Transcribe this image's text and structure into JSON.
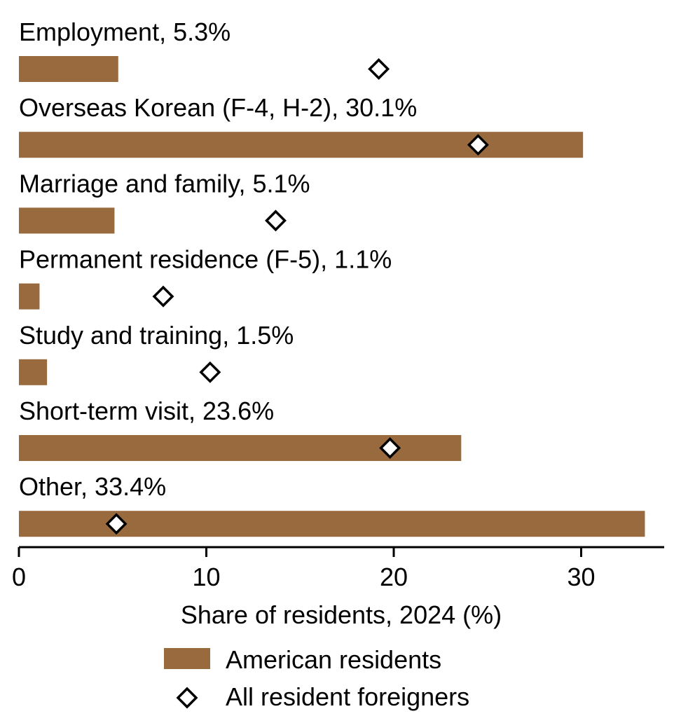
{
  "chart_data": {
    "type": "bar",
    "orientation": "horizontal",
    "categories": [
      "Employment",
      "Overseas Korean (F-4, H-2)",
      "Marriage and family",
      "Permanent residence (F-5)",
      "Study and training",
      "Short-term visit",
      "Other"
    ],
    "category_labels": [
      "Employment, 5.3%",
      "Overseas Korean (F-4, H-2), 30.1%",
      "Marriage and family, 5.1%",
      "Permanent residence (F-5), 1.1%",
      "Study and training, 1.5%",
      "Short-term visit, 23.6%",
      "Other, 33.4%"
    ],
    "series": [
      {
        "name": "American residents",
        "kind": "bar",
        "color": "#9a6a3f",
        "values": [
          5.3,
          30.1,
          5.1,
          1.1,
          1.5,
          23.6,
          33.4
        ]
      },
      {
        "name": "All resident foreigners",
        "kind": "diamond-marker",
        "color": "#ffffff",
        "values": [
          19.2,
          24.5,
          13.7,
          7.7,
          10.2,
          19.8,
          5.2
        ]
      }
    ],
    "xlabel": "Share of residents, 2024 (%)",
    "xlim": [
      0,
      34.5
    ],
    "xticks": [
      0,
      10,
      20,
      30
    ],
    "xtick_labels": [
      "0",
      "10",
      "20",
      "30"
    ],
    "grid": false,
    "legend_position": "bottom-center"
  }
}
